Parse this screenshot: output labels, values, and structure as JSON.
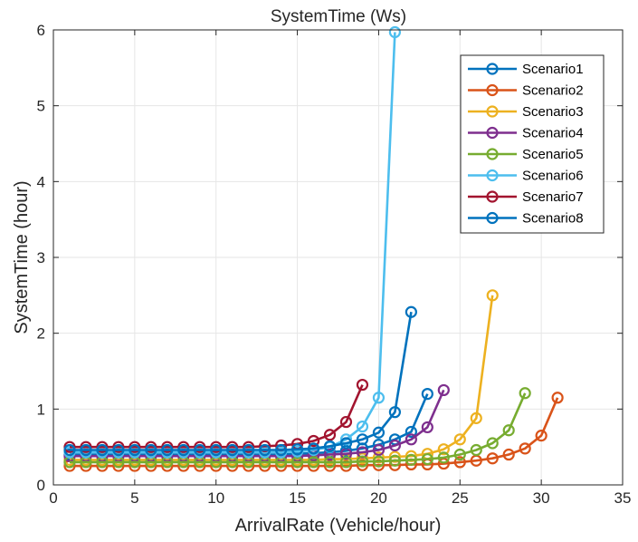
{
  "chart_data": {
    "type": "line",
    "title": "SystemTime (Ws)",
    "xlabel": "ArrivalRate (Vehicle/hour)",
    "ylabel": "SystemTime (hour)",
    "xlim": [
      0,
      35
    ],
    "ylim": [
      0,
      6
    ],
    "xticks": [
      0,
      5,
      10,
      15,
      20,
      25,
      30,
      35
    ],
    "yticks": [
      0,
      1,
      2,
      3,
      4,
      5,
      6
    ],
    "grid": true,
    "legend_position": "top-right",
    "marker": "circle",
    "series": [
      {
        "name": "Scenario1",
        "color": "#0072BD",
        "x": [
          1,
          2,
          3,
          4,
          5,
          6,
          7,
          8,
          9,
          10,
          11,
          12,
          13,
          14,
          15,
          16,
          17,
          18,
          19,
          20,
          21,
          22,
          23
        ],
        "y": [
          0.4,
          0.4,
          0.4,
          0.4,
          0.4,
          0.4,
          0.4,
          0.4,
          0.4,
          0.4,
          0.4,
          0.4,
          0.4,
          0.4,
          0.41,
          0.42,
          0.43,
          0.45,
          0.48,
          0.53,
          0.6,
          0.7,
          1.2
        ]
      },
      {
        "name": "Scenario2",
        "color": "#D95319",
        "x": [
          1,
          2,
          3,
          4,
          5,
          6,
          7,
          8,
          9,
          10,
          11,
          12,
          13,
          14,
          15,
          16,
          17,
          18,
          19,
          20,
          21,
          22,
          23,
          24,
          25,
          26,
          27,
          28,
          29,
          30,
          31
        ],
        "y": [
          0.25,
          0.25,
          0.25,
          0.25,
          0.25,
          0.25,
          0.25,
          0.25,
          0.25,
          0.25,
          0.25,
          0.25,
          0.25,
          0.25,
          0.25,
          0.25,
          0.25,
          0.25,
          0.26,
          0.26,
          0.26,
          0.27,
          0.27,
          0.28,
          0.3,
          0.32,
          0.35,
          0.4,
          0.48,
          0.65,
          1.15
        ]
      },
      {
        "name": "Scenario3",
        "color": "#EDB120",
        "x": [
          1,
          2,
          3,
          4,
          5,
          6,
          7,
          8,
          9,
          10,
          11,
          12,
          13,
          14,
          15,
          16,
          17,
          18,
          19,
          20,
          21,
          22,
          23,
          24,
          25,
          26,
          27
        ],
        "y": [
          0.33,
          0.33,
          0.33,
          0.33,
          0.33,
          0.33,
          0.33,
          0.33,
          0.33,
          0.33,
          0.33,
          0.33,
          0.33,
          0.33,
          0.33,
          0.33,
          0.34,
          0.34,
          0.35,
          0.36,
          0.37,
          0.38,
          0.41,
          0.47,
          0.6,
          0.88,
          2.5
        ]
      },
      {
        "name": "Scenario4",
        "color": "#7E2F8E",
        "x": [
          1,
          2,
          3,
          4,
          5,
          6,
          7,
          8,
          9,
          10,
          11,
          12,
          13,
          14,
          15,
          16,
          17,
          18,
          19,
          20,
          21,
          22,
          23,
          24
        ],
        "y": [
          0.38,
          0.38,
          0.38,
          0.38,
          0.38,
          0.38,
          0.38,
          0.38,
          0.38,
          0.38,
          0.38,
          0.38,
          0.38,
          0.38,
          0.38,
          0.39,
          0.4,
          0.41,
          0.43,
          0.46,
          0.52,
          0.6,
          0.76,
          1.25
        ]
      },
      {
        "name": "Scenario5",
        "color": "#77AC30",
        "x": [
          1,
          2,
          3,
          4,
          5,
          6,
          7,
          8,
          9,
          10,
          11,
          12,
          13,
          14,
          15,
          16,
          17,
          18,
          19,
          20,
          21,
          22,
          23,
          24,
          25,
          26,
          27,
          28,
          29
        ],
        "y": [
          0.3,
          0.3,
          0.3,
          0.3,
          0.3,
          0.3,
          0.3,
          0.3,
          0.3,
          0.3,
          0.3,
          0.3,
          0.3,
          0.3,
          0.3,
          0.3,
          0.3,
          0.3,
          0.31,
          0.31,
          0.32,
          0.33,
          0.34,
          0.36,
          0.4,
          0.46,
          0.55,
          0.72,
          1.21
        ]
      },
      {
        "name": "Scenario6",
        "color": "#4DBEEE",
        "x": [
          1,
          2,
          3,
          4,
          5,
          6,
          7,
          8,
          9,
          10,
          11,
          12,
          13,
          14,
          15,
          16,
          17,
          18,
          19,
          20,
          21
        ],
        "y": [
          0.43,
          0.43,
          0.43,
          0.43,
          0.43,
          0.43,
          0.43,
          0.43,
          0.43,
          0.43,
          0.43,
          0.43,
          0.43,
          0.43,
          0.44,
          0.46,
          0.5,
          0.6,
          0.77,
          1.15,
          5.97
        ]
      },
      {
        "name": "Scenario7",
        "color": "#A2142F",
        "x": [
          1,
          2,
          3,
          4,
          5,
          6,
          7,
          8,
          9,
          10,
          11,
          12,
          13,
          14,
          15,
          16,
          17,
          18,
          19
        ],
        "y": [
          0.5,
          0.5,
          0.5,
          0.5,
          0.5,
          0.5,
          0.5,
          0.5,
          0.5,
          0.5,
          0.5,
          0.5,
          0.51,
          0.52,
          0.54,
          0.58,
          0.66,
          0.83,
          1.32
        ]
      },
      {
        "name": "Scenario8",
        "color": "#0072BD",
        "x": [
          1,
          2,
          3,
          4,
          5,
          6,
          7,
          8,
          9,
          10,
          11,
          12,
          13,
          14,
          15,
          16,
          17,
          18,
          19,
          20,
          21,
          22
        ],
        "y": [
          0.46,
          0.46,
          0.46,
          0.46,
          0.46,
          0.46,
          0.46,
          0.46,
          0.46,
          0.46,
          0.46,
          0.46,
          0.46,
          0.46,
          0.47,
          0.48,
          0.51,
          0.55,
          0.6,
          0.69,
          0.96,
          2.28
        ]
      }
    ]
  }
}
